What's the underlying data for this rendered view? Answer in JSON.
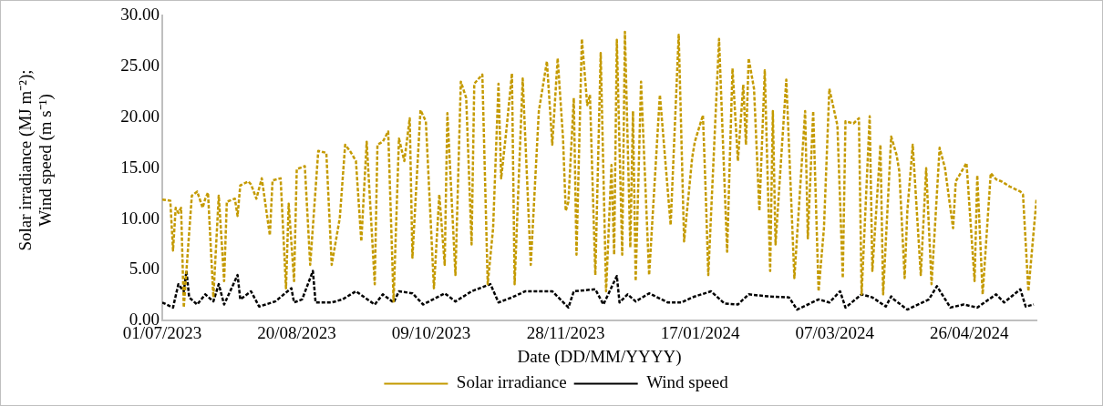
{
  "chart_data": {
    "type": "line",
    "xlabel": "Date (DD/MM/YYYY)",
    "ylabel": "Solar irradiance (MJ m⁻²); Wind speed (m s⁻¹)",
    "xlim": [
      "2023-07-01",
      "2024-05-21"
    ],
    "xticks": [
      {
        "value": "2023-07-01",
        "label": "01/07/2023"
      },
      {
        "value": "2023-08-20",
        "label": "20/08/2023"
      },
      {
        "value": "2023-10-09",
        "label": "09/10/2023"
      },
      {
        "value": "2023-11-28",
        "label": "28/11/2023"
      },
      {
        "value": "2024-01-17",
        "label": "17/01/2024"
      },
      {
        "value": "2024-03-07",
        "label": "07/03/2024"
      },
      {
        "value": "2024-04-26",
        "label": "26/04/2024"
      }
    ],
    "ylim": [
      0,
      30
    ],
    "yticks": [
      {
        "value": 0,
        "label": "0.00"
      },
      {
        "value": 5,
        "label": "5.00"
      },
      {
        "value": 10,
        "label": "10.00"
      },
      {
        "value": 15,
        "label": "15.00"
      },
      {
        "value": 20,
        "label": "20.00"
      },
      {
        "value": 25,
        "label": "25.00"
      },
      {
        "value": 30,
        "label": "30.00"
      }
    ],
    "grid": false,
    "legend": "bottom",
    "marker": "none",
    "line_style": "dashed",
    "series": [
      {
        "name": "Solar irradiance",
        "color": "#c49a00",
        "x": [
          "2023-07-01",
          "2023-07-04",
          "2023-07-05",
          "2023-07-06",
          "2023-07-07",
          "2023-07-08",
          "2023-07-09",
          "2023-07-12",
          "2023-07-14",
          "2023-07-16",
          "2023-07-17",
          "2023-07-18",
          "2023-07-20",
          "2023-07-22",
          "2023-07-24",
          "2023-07-25",
          "2023-07-28",
          "2023-07-29",
          "2023-07-30",
          "2023-08-02",
          "2023-08-03",
          "2023-08-05",
          "2023-08-07",
          "2023-08-10",
          "2023-08-11",
          "2023-08-14",
          "2023-08-16",
          "2023-08-17",
          "2023-08-19",
          "2023-08-20",
          "2023-08-23",
          "2023-08-25",
          "2023-08-28",
          "2023-08-31",
          "2023-09-02",
          "2023-09-05",
          "2023-09-07",
          "2023-09-09",
          "2023-09-11",
          "2023-09-13",
          "2023-09-15",
          "2023-09-18",
          "2023-09-19",
          "2023-09-21",
          "2023-09-23",
          "2023-09-25",
          "2023-09-27",
          "2023-09-29",
          "2023-10-01",
          "2023-10-02",
          "2023-10-05",
          "2023-10-07",
          "2023-10-10",
          "2023-10-12",
          "2023-10-14",
          "2023-10-15",
          "2023-10-18",
          "2023-10-20",
          "2023-10-22",
          "2023-10-24",
          "2023-10-25",
          "2023-10-28",
          "2023-10-30",
          "2023-11-01",
          "2023-11-03",
          "2023-11-04",
          "2023-11-06",
          "2023-11-08",
          "2023-11-09",
          "2023-11-12",
          "2023-11-15",
          "2023-11-18",
          "2023-11-21",
          "2023-11-23",
          "2023-11-25",
          "2023-11-27",
          "2023-11-28",
          "2023-11-29",
          "2023-12-01",
          "2023-12-02",
          "2023-12-04",
          "2023-12-06",
          "2023-12-07",
          "2023-12-09",
          "2023-12-11",
          "2023-12-13",
          "2023-12-15",
          "2023-12-16",
          "2023-12-17",
          "2023-12-19",
          "2023-12-20",
          "2023-12-22",
          "2023-12-23",
          "2023-12-24",
          "2023-12-26",
          "2023-12-29",
          "2024-01-02",
          "2024-01-06",
          "2024-01-09",
          "2024-01-11",
          "2024-01-14",
          "2024-01-15",
          "2024-01-18",
          "2024-01-19",
          "2024-01-20",
          "2024-01-24",
          "2024-01-27",
          "2024-01-29",
          "2024-01-31",
          "2024-02-02",
          "2024-02-03",
          "2024-02-04",
          "2024-02-06",
          "2024-02-08",
          "2024-02-10",
          "2024-02-12",
          "2024-02-13",
          "2024-02-14",
          "2024-02-18",
          "2024-02-21",
          "2024-02-25",
          "2024-02-26",
          "2024-02-28",
          "2024-03-01",
          "2024-03-03",
          "2024-03-05",
          "2024-03-08",
          "2024-03-10",
          "2024-03-11",
          "2024-03-14",
          "2024-03-16",
          "2024-03-17",
          "2024-03-20",
          "2024-03-21",
          "2024-03-24",
          "2024-03-25",
          "2024-03-28",
          "2024-03-30",
          "2024-03-31",
          "2024-04-02",
          "2024-04-03",
          "2024-04-05",
          "2024-04-08",
          "2024-04-10",
          "2024-04-12",
          "2024-04-15",
          "2024-04-17",
          "2024-04-20",
          "2024-04-21",
          "2024-04-25",
          "2024-04-28",
          "2024-04-29",
          "2024-05-01",
          "2024-05-04",
          "2024-05-06",
          "2024-05-08",
          "2024-05-11",
          "2024-05-15",
          "2024-05-16",
          "2024-05-18",
          "2024-05-21"
        ],
        "values": [
          11.9,
          11.8,
          6.9,
          11.1,
          10.6,
          11.1,
          1.3,
          12.3,
          12.7,
          11.1,
          12.0,
          12.6,
          2.3,
          12.3,
          3.9,
          11.7,
          12.0,
          10.3,
          13.3,
          13.7,
          13.4,
          12.0,
          14.0,
          8.4,
          13.8,
          14.0,
          3.2,
          11.5,
          3.9,
          14.9,
          15.2,
          5.5,
          16.7,
          16.5,
          5.5,
          10.1,
          17.3,
          16.6,
          15.7,
          7.8,
          17.6,
          3.6,
          17.3,
          17.6,
          18.6,
          1.9,
          17.9,
          15.7,
          19.9,
          6.2,
          20.7,
          19.6,
          3.2,
          12.4,
          5.5,
          20.4,
          4.5,
          23.5,
          21.9,
          7.5,
          23.3,
          24.2,
          3.6,
          9.1,
          23.3,
          14.0,
          18.9,
          24.3,
          3.6,
          23.8,
          5.5,
          20.6,
          25.5,
          17.3,
          25.8,
          17.9,
          10.8,
          11.7,
          21.9,
          6.5,
          27.7,
          21.2,
          22.2,
          4.5,
          26.3,
          2.9,
          15.3,
          6.5,
          27.6,
          6.5,
          28.4,
          7.2,
          20.6,
          3.9,
          23.5,
          4.5,
          22.2,
          9.4,
          28.1,
          7.8,
          16.0,
          17.6,
          20.2,
          12.9,
          4.5,
          27.7,
          6.8,
          24.8,
          15.7,
          23.2,
          17.3,
          25.8,
          22.8,
          10.8,
          24.6,
          4.9,
          20.6,
          7.5,
          23.7,
          4.2,
          20.6,
          8.1,
          20.6,
          2.9,
          9.1,
          22.8,
          19.2,
          4.2,
          19.6,
          19.4,
          19.9,
          2.6,
          20.1,
          4.9,
          17.3,
          2.6,
          18.1,
          16.3,
          14.7,
          4.2,
          10.8,
          17.3,
          4.5,
          15.0,
          3.6,
          17.0,
          15.0,
          9.1,
          13.7,
          15.5,
          3.9,
          14.3,
          2.6,
          14.5,
          13.9,
          13.7,
          13.2,
          12.7,
          12.4,
          2.9,
          11.9
        ]
      },
      {
        "name": "Wind speed",
        "color": "#000000",
        "x": [
          "2023-07-01",
          "2023-07-05",
          "2023-07-07",
          "2023-07-09",
          "2023-07-10",
          "2023-07-11",
          "2023-07-14",
          "2023-07-17",
          "2023-07-20",
          "2023-07-22",
          "2023-07-24",
          "2023-07-29",
          "2023-07-30",
          "2023-08-03",
          "2023-08-06",
          "2023-08-12",
          "2023-08-18",
          "2023-08-19",
          "2023-08-22",
          "2023-08-26",
          "2023-08-27",
          "2023-09-02",
          "2023-09-06",
          "2023-09-11",
          "2023-09-18",
          "2023-09-21",
          "2023-09-25",
          "2023-09-27",
          "2023-10-02",
          "2023-10-06",
          "2023-10-14",
          "2023-10-18",
          "2023-10-24",
          "2023-10-31",
          "2023-11-03",
          "2023-11-08",
          "2023-11-13",
          "2023-11-23",
          "2023-11-29",
          "2023-12-01",
          "2023-12-09",
          "2023-12-12",
          "2023-12-17",
          "2023-12-18",
          "2023-12-21",
          "2023-12-24",
          "2023-12-29",
          "2024-01-05",
          "2024-01-10",
          "2024-01-14",
          "2024-01-21",
          "2024-01-26",
          "2024-01-31",
          "2024-02-04",
          "2024-02-11",
          "2024-02-19",
          "2024-02-22",
          "2024-03-01",
          "2024-03-05",
          "2024-03-09",
          "2024-03-11",
          "2024-03-17",
          "2024-03-21",
          "2024-03-26",
          "2024-03-28",
          "2024-03-29",
          "2024-04-03",
          "2024-04-11",
          "2024-04-14",
          "2024-04-19",
          "2024-04-24",
          "2024-04-29",
          "2024-05-06",
          "2024-05-09",
          "2024-05-15",
          "2024-05-17",
          "2024-05-20"
        ],
        "values": [
          1.8,
          1.3,
          3.6,
          2.9,
          4.9,
          2.3,
          1.6,
          2.6,
          1.9,
          3.6,
          1.6,
          4.5,
          2.1,
          2.9,
          1.4,
          1.9,
          3.2,
          1.8,
          2.1,
          4.9,
          1.8,
          1.8,
          2.1,
          2.9,
          1.6,
          2.6,
          1.8,
          2.9,
          2.7,
          1.6,
          2.7,
          1.9,
          2.9,
          3.6,
          1.8,
          2.3,
          2.9,
          2.9,
          1.3,
          2.9,
          3.1,
          1.6,
          4.4,
          1.8,
          2.6,
          1.9,
          2.7,
          1.8,
          1.8,
          2.3,
          2.9,
          1.7,
          1.6,
          2.6,
          2.4,
          2.3,
          1.1,
          2.1,
          1.8,
          2.9,
          1.3,
          2.6,
          2.3,
          1.4,
          2.4,
          2.1,
          1.1,
          2.1,
          3.4,
          1.3,
          1.6,
          1.3,
          2.6,
          1.8,
          3.1,
          1.4,
          1.6
        ]
      }
    ]
  }
}
